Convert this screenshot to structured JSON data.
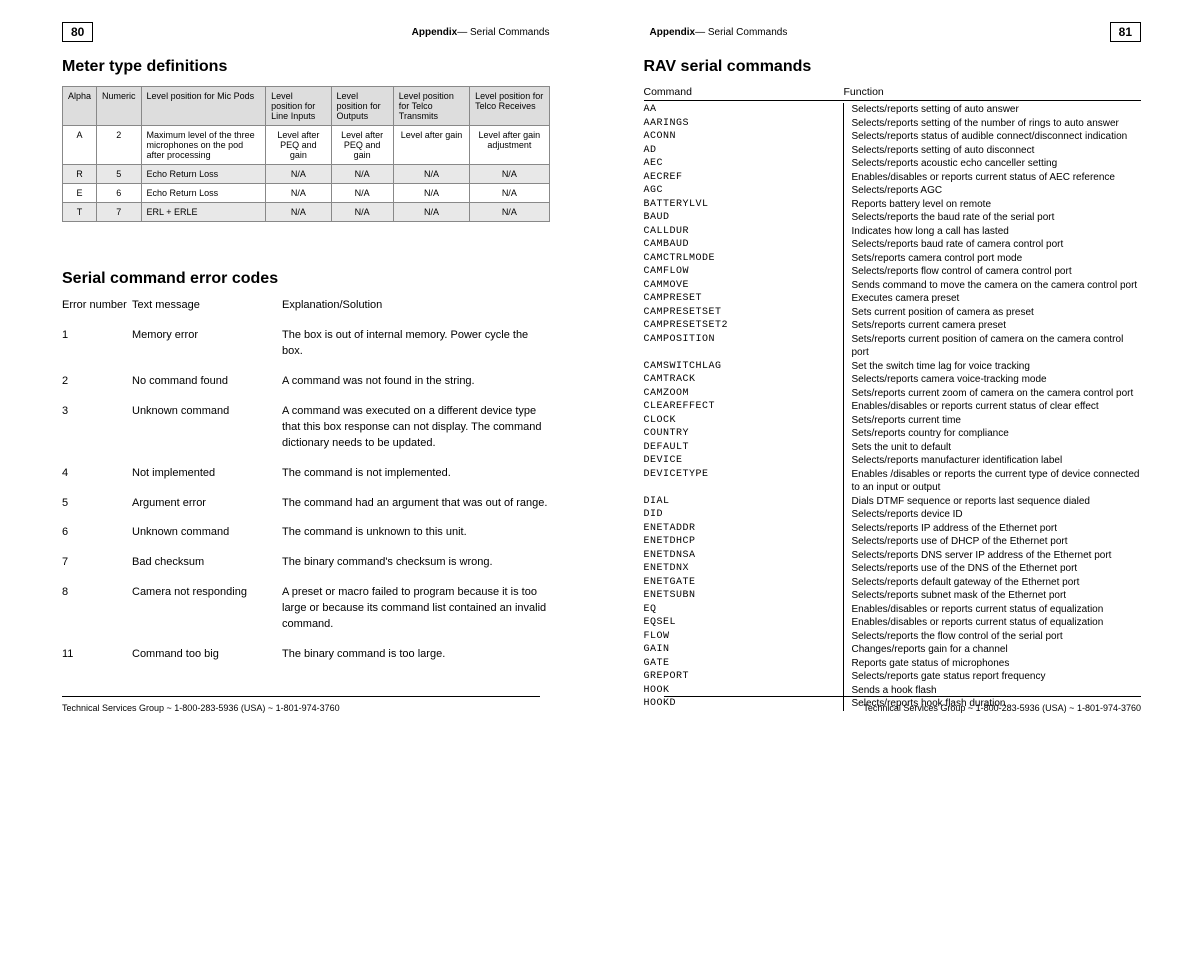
{
  "pageLeft": {
    "pageNumber": "80",
    "headerPrefix": "Appendix",
    "headerSuffix": "— Serial Commands",
    "footer": "Technical Services Group ~ 1-800-283-5936 (USA) ~ 1-801-974-3760"
  },
  "pageRight": {
    "pageNumber": "81",
    "headerPrefix": "Appendix",
    "headerSuffix": "— Serial Commands",
    "footer": "Technical Services Group ~ 1-800-283-5936 (USA) ~ 1-801-974-3760"
  },
  "meter": {
    "title": "Meter type definitions",
    "columns": [
      "Alpha",
      "Numeric",
      "Level position for Mic Pods",
      "Level position for Line Inputs",
      "Level position for Outputs",
      "Level position for Telco Transmits",
      "Level position for Telco Receives"
    ],
    "rows": [
      {
        "alpha": "A",
        "num": "2",
        "c3": "Maximum level of the three microphones on the pod after processing",
        "c4": "Level after PEQ and gain",
        "c5": "Level after PEQ and gain",
        "c6": "Level after gain",
        "c7": "Level after gain adjustment",
        "grey": false
      },
      {
        "alpha": "R",
        "num": "5",
        "c3": "Echo Return Loss",
        "c4": "N/A",
        "c5": "N/A",
        "c6": "N/A",
        "c7": "N/A",
        "grey": true
      },
      {
        "alpha": "E",
        "num": "6",
        "c3": "Echo Return Loss",
        "c4": "N/A",
        "c5": "N/A",
        "c6": "N/A",
        "c7": "N/A",
        "grey": false
      },
      {
        "alpha": "T",
        "num": "7",
        "c3": "ERL + ERLE",
        "c4": "N/A",
        "c5": "N/A",
        "c6": "N/A",
        "c7": "N/A",
        "grey": true
      }
    ]
  },
  "errors": {
    "title": "Serial command error codes",
    "headers": [
      "Error number",
      "Text message",
      "Explanation/Solution"
    ],
    "rows": [
      {
        "n": "1",
        "msg": "Memory error",
        "exp": "The box is out of internal memory. Power cycle the box."
      },
      {
        "n": "2",
        "msg": "No command found",
        "exp": "A command was not found in the string."
      },
      {
        "n": "3",
        "msg": "Unknown command",
        "exp": "A command was executed on a different device type that this box response can not display. The command dictionary needs to be updated."
      },
      {
        "n": "4",
        "msg": "Not implemented",
        "exp": "The command is not implemented."
      },
      {
        "n": "5",
        "msg": "Argument error",
        "exp": "The command had an argument that was out of range."
      },
      {
        "n": "6",
        "msg": "Unknown command",
        "exp": "The command is unknown to this unit."
      },
      {
        "n": "7",
        "msg": "Bad checksum",
        "exp": "The binary command's checksum is wrong."
      },
      {
        "n": "8",
        "msg": "Camera not responding",
        "exp": "A preset or macro failed to program because it is too large or because its command list contained an invalid command."
      },
      {
        "n": "11",
        "msg": "Command too big",
        "exp": "The binary command is too large."
      }
    ]
  },
  "rav": {
    "title": "RAV serial commands",
    "headers": [
      "Command",
      "Function"
    ],
    "rows": [
      {
        "c": "AA",
        "f": "Selects/reports setting of auto answer"
      },
      {
        "c": "AARINGS",
        "f": "Selects/reports setting of the number of rings to auto answer"
      },
      {
        "c": "ACONN",
        "f": "Selects/reports status of audible connect/disconnect indication"
      },
      {
        "c": "AD",
        "f": "Selects/reports setting of auto disconnect"
      },
      {
        "c": "AEC",
        "f": "Selects/reports acoustic echo canceller setting"
      },
      {
        "c": "AECREF",
        "f": "Enables/disables or reports current status of AEC reference"
      },
      {
        "c": "AGC",
        "f": "Selects/reports AGC"
      },
      {
        "c": "BATTERYLVL",
        "f": "Reports battery level on remote"
      },
      {
        "c": "BAUD",
        "f": "Selects/reports the baud rate of the serial port"
      },
      {
        "c": "CALLDUR",
        "f": "Indicates how long a call has lasted"
      },
      {
        "c": "CAMBAUD",
        "f": "Selects/reports baud rate of camera control port"
      },
      {
        "c": "CAMCTRLMODE",
        "f": "Sets/reports camera control port mode"
      },
      {
        "c": "CAMFLOW",
        "f": "Selects/reports flow control of camera control port"
      },
      {
        "c": "CAMMOVE",
        "f": "Sends command to move the camera on the camera control port"
      },
      {
        "c": "CAMPRESET",
        "f": "Executes camera preset"
      },
      {
        "c": "CAMPRESETSET",
        "f": "Sets current position of camera as preset"
      },
      {
        "c": "CAMPRESETSET2",
        "f": "Sets/reports current camera preset"
      },
      {
        "c": "CAMPOSITION",
        "f": "Sets/reports current position of camera on the camera control port"
      },
      {
        "c": "CAMSWITCHLAG",
        "f": "Set the switch time lag for voice tracking"
      },
      {
        "c": "CAMTRACK",
        "f": "Selects/reports camera voice-tracking mode"
      },
      {
        "c": "CAMZOOM",
        "f": "Sets/reports current zoom of camera on the camera control port"
      },
      {
        "c": "CLEAREFFECT",
        "f": "Enables/disables or reports current status of clear effect"
      },
      {
        "c": "CLOCK",
        "f": "Sets/reports current time"
      },
      {
        "c": "COUNTRY",
        "f": "Sets/reports country for compliance"
      },
      {
        "c": "DEFAULT",
        "f": "Sets the unit to default"
      },
      {
        "c": "DEVICE",
        "f": "Selects/reports manufacturer identification label"
      },
      {
        "c": "DEVICETYPE",
        "f": "Enables /disables or reports the current type of device connected to an input or output"
      },
      {
        "c": "DIAL",
        "f": "Dials DTMF sequence or reports last sequence dialed"
      },
      {
        "c": "DID",
        "f": "Selects/reports device ID"
      },
      {
        "c": "ENETADDR",
        "f": "Selects/reports IP address of the Ethernet port"
      },
      {
        "c": "ENETDHCP",
        "f": "Selects/reports use of DHCP of the Ethernet port"
      },
      {
        "c": "ENETDNSA",
        "f": "Selects/reports DNS server IP address of the Ethernet port"
      },
      {
        "c": "ENETDNX",
        "f": "Selects/reports use of the DNS of the Ethernet port"
      },
      {
        "c": "ENETGATE",
        "f": "Selects/reports default gateway of the Ethernet port"
      },
      {
        "c": "ENETSUBN",
        "f": "Selects/reports subnet mask of the Ethernet port"
      },
      {
        "c": "EQ",
        "f": "Enables/disables or reports current status of equalization"
      },
      {
        "c": "EQSEL",
        "f": "Enables/disables or reports current status of equalization"
      },
      {
        "c": "FLOW",
        "f": "Selects/reports the flow control of the serial port"
      },
      {
        "c": "GAIN",
        "f": "Changes/reports gain for a channel"
      },
      {
        "c": "GATE",
        "f": "Reports gate status of microphones"
      },
      {
        "c": "GREPORT",
        "f": "Selects/reports gate status report frequency"
      },
      {
        "c": "HOOK",
        "f": "Sends a hook flash"
      },
      {
        "c": "HOOKD",
        "f": "Selects/reports hook flash duration"
      }
    ]
  },
  "style": {
    "bg_white": "#ffffff",
    "table_header_bg": "#dddddd",
    "table_row_grey": "#e8e8e8",
    "border": "#888888",
    "font_body": 11,
    "font_small": 9
  }
}
